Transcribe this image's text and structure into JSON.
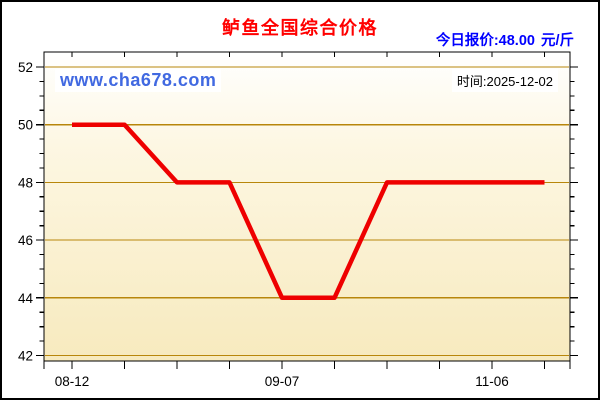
{
  "header": {
    "title": "鲈鱼全国综合价格",
    "quote_label": "今日报价:",
    "quote_value": "48.00",
    "quote_unit": "元/斤"
  },
  "watermark": "www.cha678.com",
  "timestamp": "时间:2025-12-02",
  "colors": {
    "title": "#ff0000",
    "quote": "#0000ff",
    "watermark": "#4169e1",
    "timestamp": "#000000",
    "line": "#ee0000",
    "grid": "#b8860b",
    "frame": "#000000",
    "tick": "#000000",
    "plot_top": "#ffffff",
    "plot_mid": "#fdf7e3",
    "plot_bottom": "#f7eabe"
  },
  "chart_data": {
    "type": "line",
    "title": "鲈鱼全国综合价格",
    "series_name": "鲈鱼全国综合价格",
    "unit": "元/斤",
    "n_points": 10,
    "values": [
      50,
      50,
      48,
      48,
      44,
      44,
      48,
      48,
      48,
      48
    ],
    "x_labels": [
      {
        "index": 0,
        "label": "08-12"
      },
      {
        "index": 4,
        "label": "09-07"
      },
      {
        "index": 8,
        "label": "11-06"
      }
    ],
    "ylim": [
      42,
      52
    ],
    "yticks": [
      52,
      50,
      48,
      46,
      44,
      42
    ],
    "y_minor_step": 0.5,
    "grid": true,
    "legend": "none",
    "line_width": 4.5,
    "latest_value": 48.0
  }
}
